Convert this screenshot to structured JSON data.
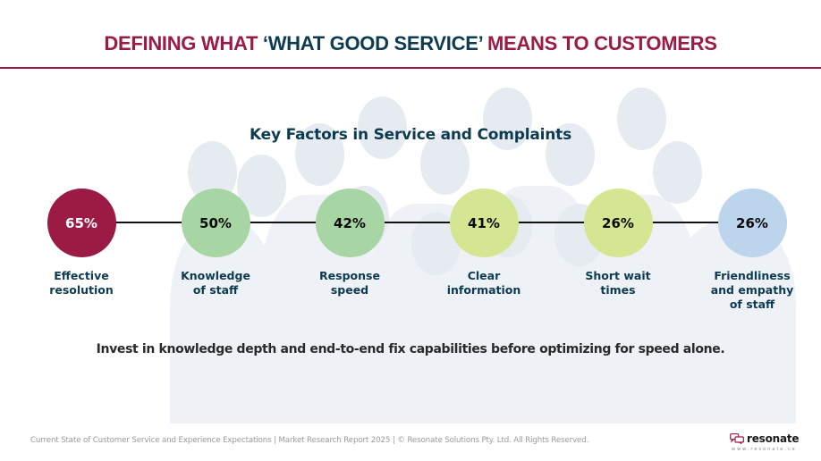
{
  "header": {
    "title_part1": "DEFINING WHAT ",
    "title_highlight": "‘WHAT GOOD SERVICE’",
    "title_part2": " MEANS TO CUSTOMERS",
    "title_color": "#9b1b45",
    "highlight_color": "#0d3b4f"
  },
  "section": {
    "subtitle": "Key Factors in Service and Complaints"
  },
  "factors": [
    {
      "value": "65%",
      "label_lines": [
        "Effective",
        "resolution"
      ],
      "color": "#9b1b45",
      "text_color": "#ffffff"
    },
    {
      "value": "50%",
      "label_lines": [
        "Knowledge",
        "of staff"
      ],
      "color": "#a8d5a4",
      "text_color": "#0a0a0a"
    },
    {
      "value": "42%",
      "label_lines": [
        "Response",
        "speed"
      ],
      "color": "#a8d5a4",
      "text_color": "#0a0a0a"
    },
    {
      "value": "41%",
      "label_lines": [
        "Clear",
        "information"
      ],
      "color": "#d4e691",
      "text_color": "#0a0a0a"
    },
    {
      "value": "26%",
      "label_lines": [
        "Short wait",
        "times"
      ],
      "color": "#d4e691",
      "text_color": "#0a0a0a"
    },
    {
      "value": "26%",
      "label_lines": [
        "Friendliness",
        "and empathy",
        "of staff"
      ],
      "color": "#bcd5ec",
      "text_color": "#0a0a0a"
    }
  ],
  "insight": "Invest in knowledge depth and end-to-end fix capabilities before optimizing for speed alone.",
  "footer": {
    "text": "Current State of Customer Service and Experience Expectations | Market Research Report 2025 | © Resonate Solutions Pty. Ltd. All Rights Reserved.",
    "logo_word": "resonate",
    "logo_url": "www.resonate.cx",
    "logo_icon": "chat-bubbles-icon",
    "logo_color": "#9b1b45"
  }
}
